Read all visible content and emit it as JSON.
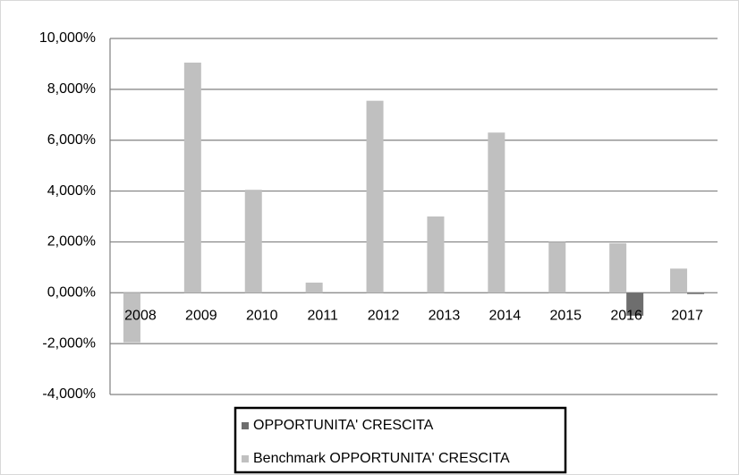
{
  "chart_data": {
    "type": "bar",
    "categories": [
      "2008",
      "2009",
      "2010",
      "2011",
      "2012",
      "2013",
      "2014",
      "2015",
      "2016",
      "2017"
    ],
    "series": [
      {
        "name": "OPPORTUNITA' CRESCITA",
        "color": "#6e6e6e",
        "values": [
          0,
          0,
          0,
          0,
          0,
          0,
          0,
          0,
          -0.9,
          -0.05
        ]
      },
      {
        "name": "Benchmark OPPORTUNITA' CRESCITA",
        "color": "#c0c0c0",
        "values": [
          -1.95,
          9.05,
          4.05,
          0.4,
          7.55,
          3.0,
          6.3,
          2.0,
          1.95,
          0.95
        ]
      }
    ],
    "ylim": [
      -4,
      10
    ],
    "yticks": [
      {
        "value": -4,
        "label": "-4,000%"
      },
      {
        "value": -2,
        "label": "-2,000%"
      },
      {
        "value": 0,
        "label": "0,000%"
      },
      {
        "value": 2,
        "label": "2,000%"
      },
      {
        "value": 4,
        "label": "4,000%"
      },
      {
        "value": 6,
        "label": "6,000%"
      },
      {
        "value": 8,
        "label": "8,000%"
      },
      {
        "value": 10,
        "label": "10,000%"
      }
    ],
    "grid": true,
    "legend": "bottom"
  }
}
